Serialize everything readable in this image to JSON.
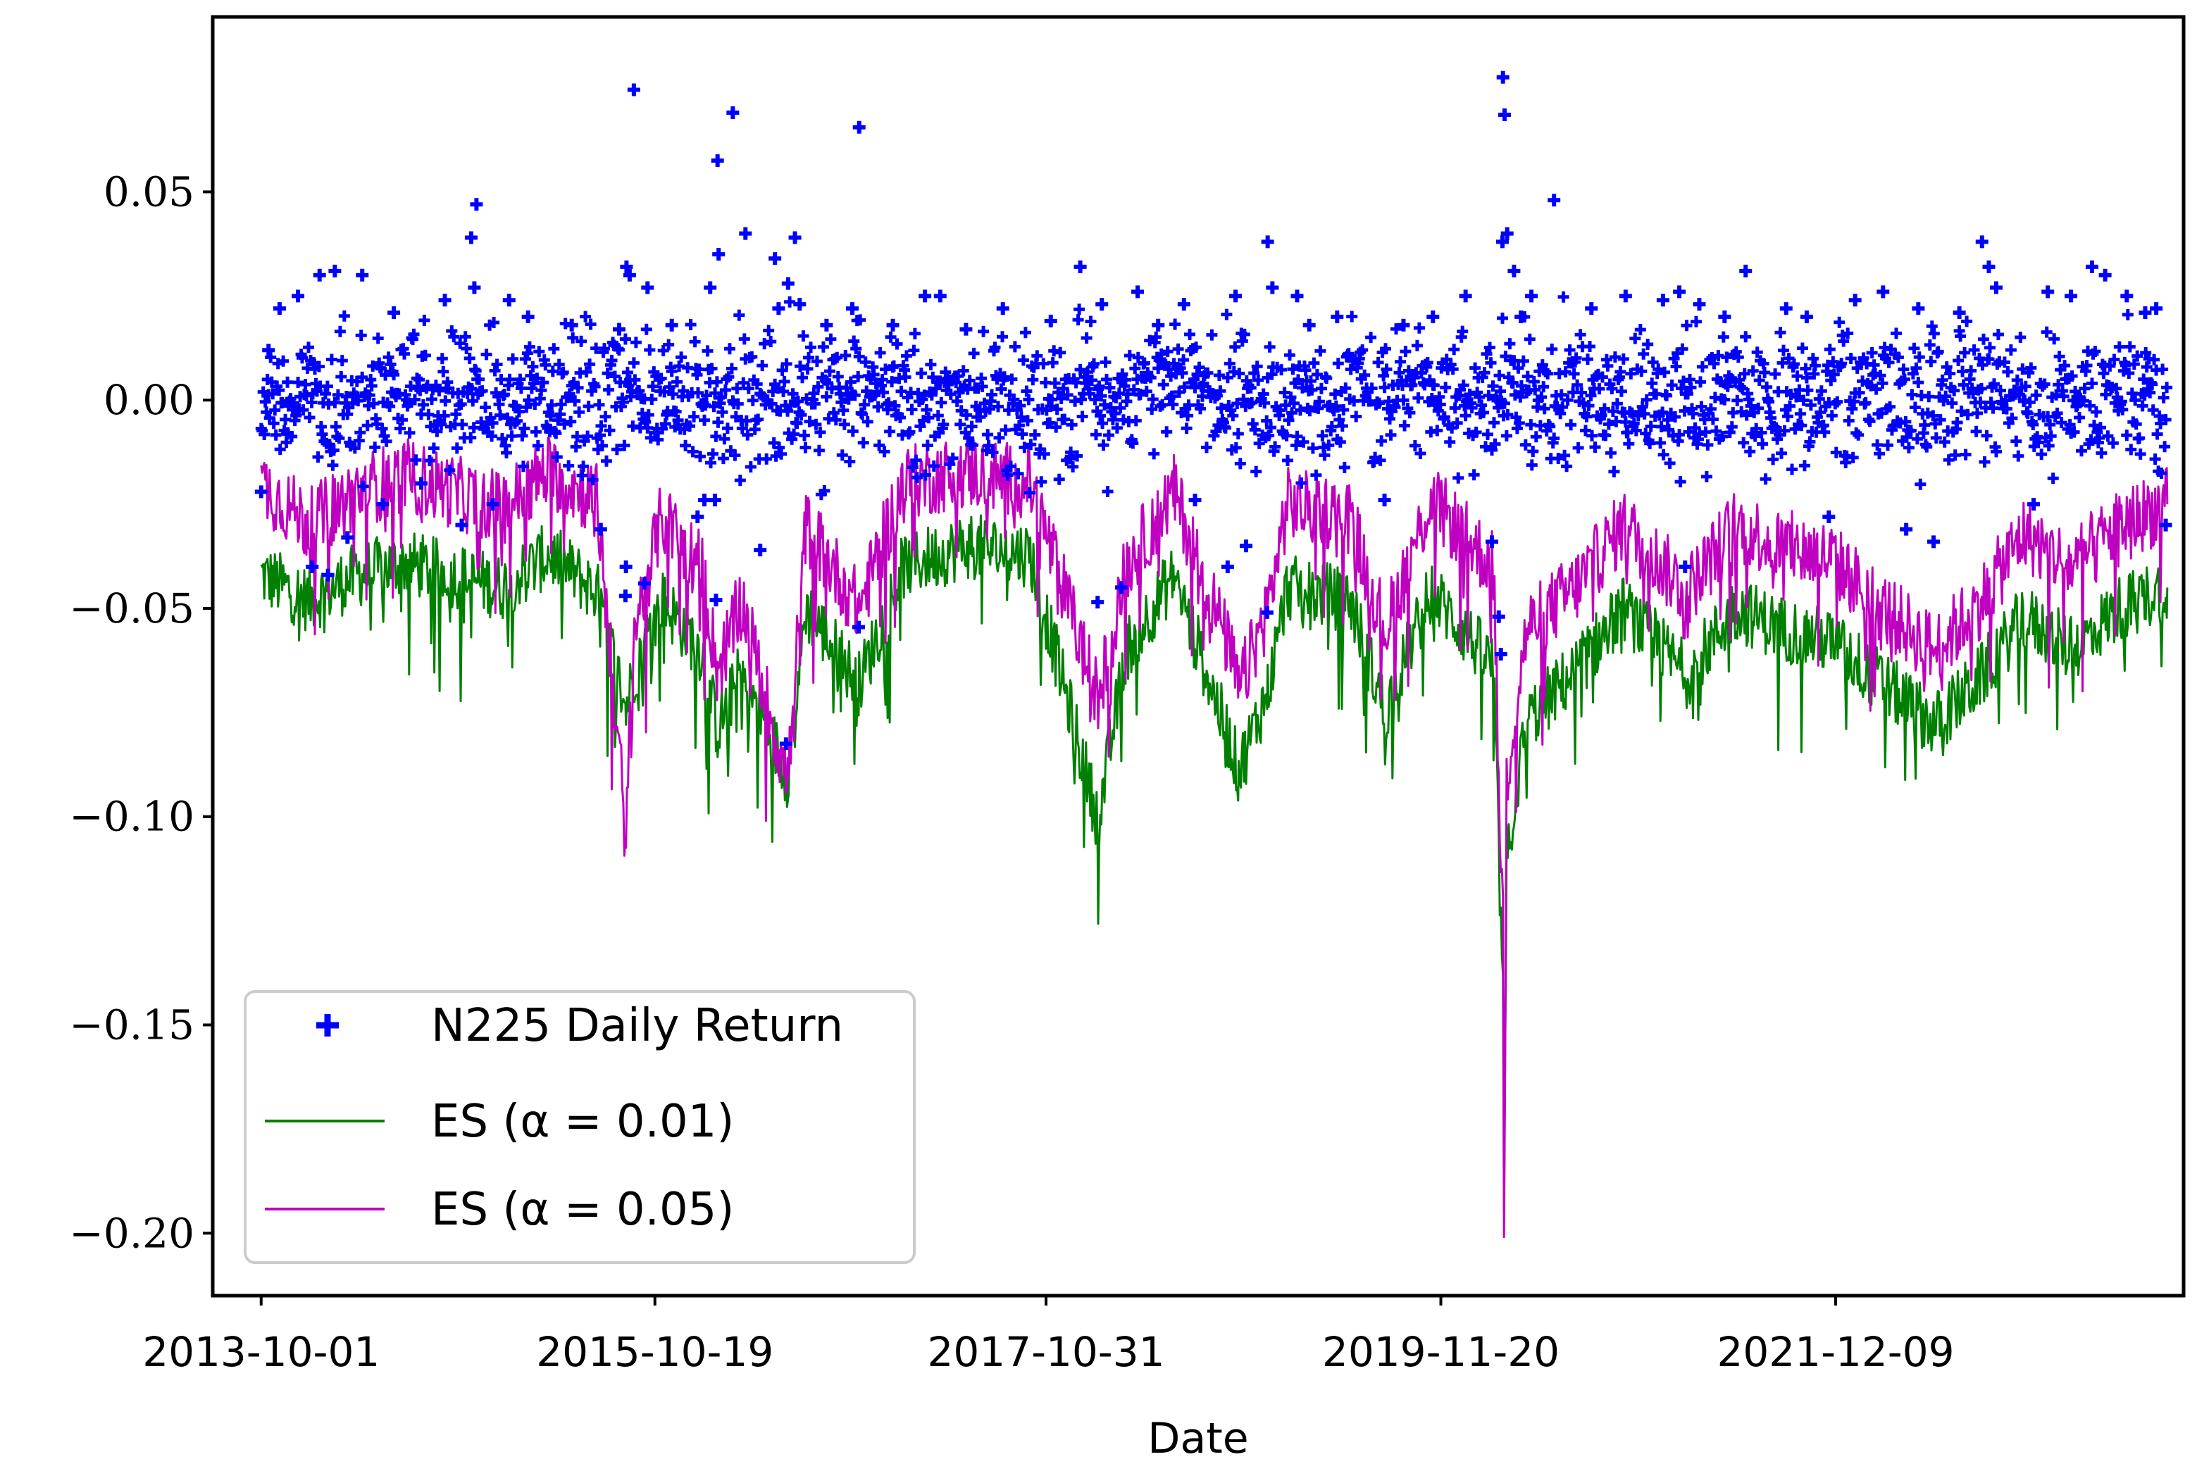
{
  "chart_data": {
    "type": "scatter",
    "title": "",
    "xlabel": "Date",
    "ylabel": "",
    "x_ticks": [
      "2013-10-01",
      "2015-10-19",
      "2017-10-31",
      "2019-11-20",
      "2021-12-09"
    ],
    "y_ticks": [
      "0.05",
      "0.00",
      "−0.05",
      "−0.10",
      "−0.15",
      "−0.20"
    ],
    "xlim": [
      "2013-07-01",
      "2023-10-01"
    ],
    "ylim": [
      -0.215,
      0.092
    ],
    "grid": false,
    "legend_position": "lower-left",
    "series": [
      {
        "name": "N225 Daily Return",
        "kind": "scatter",
        "marker": "+",
        "color": "#0000ff",
        "points": [
          [
            "2013-10-01",
            -0.022
          ],
          [
            "2013-10-15",
            0.012
          ],
          [
            "2013-11-05",
            0.022
          ],
          [
            "2013-11-20",
            -0.008
          ],
          [
            "2013-12-10",
            0.025
          ],
          [
            "2014-01-06",
            -0.04
          ],
          [
            "2014-01-20",
            0.03
          ],
          [
            "2014-02-05",
            -0.042
          ],
          [
            "2014-02-18",
            0.031
          ],
          [
            "2014-03-14",
            -0.033
          ],
          [
            "2014-04-11",
            0.03
          ],
          [
            "2014-05-20",
            -0.025
          ],
          [
            "2014-06-10",
            0.021
          ],
          [
            "2014-08-01",
            -0.02
          ],
          [
            "2014-09-15",
            0.024
          ],
          [
            "2014-10-17",
            -0.03
          ],
          [
            "2014-11-04",
            0.039
          ],
          [
            "2014-11-10",
            0.027
          ],
          [
            "2014-11-14",
            0.047
          ],
          [
            "2014-12-15",
            -0.025
          ],
          [
            "2015-01-15",
            0.024
          ],
          [
            "2015-02-20",
            0.02
          ],
          [
            "2015-05-14",
            0.018
          ],
          [
            "2015-07-08",
            -0.031
          ],
          [
            "2015-08-12",
            0.017
          ],
          [
            "2015-08-24",
            -0.047
          ],
          [
            "2015-08-25",
            -0.04
          ],
          [
            "2015-08-26",
            0.032
          ],
          [
            "2015-09-01",
            0.03
          ],
          [
            "2015-09-09",
            0.0745
          ],
          [
            "2015-09-29",
            -0.044
          ],
          [
            "2015-10-05",
            0.027
          ],
          [
            "2015-11-20",
            0.018
          ],
          [
            "2016-01-08",
            -0.028
          ],
          [
            "2016-01-21",
            -0.024
          ],
          [
            "2016-02-01",
            0.027
          ],
          [
            "2016-02-10",
            -0.024
          ],
          [
            "2016-02-12",
            -0.048
          ],
          [
            "2016-02-15",
            0.0575
          ],
          [
            "2016-02-17",
            0.035
          ],
          [
            "2016-03-15",
            0.069
          ],
          [
            "2016-04-08",
            0.04
          ],
          [
            "2016-05-06",
            -0.036
          ],
          [
            "2016-06-03",
            0.034
          ],
          [
            "2016-06-10",
            0.022
          ],
          [
            "2016-06-24",
            -0.0825
          ],
          [
            "2016-06-28",
            0.028
          ],
          [
            "2016-07-11",
            0.039
          ],
          [
            "2016-07-20",
            0.023
          ],
          [
            "2016-09-09",
            0.018
          ],
          [
            "2016-10-28",
            0.022
          ],
          [
            "2016-11-09",
            -0.0545
          ],
          [
            "2016-11-10",
            0.0655
          ],
          [
            "2017-01-13",
            0.018
          ],
          [
            "2017-03-15",
            0.025
          ],
          [
            "2017-04-13",
            0.025
          ],
          [
            "2017-06-01",
            0.017
          ],
          [
            "2017-08-10",
            0.022
          ],
          [
            "2017-11-09",
            0.019
          ],
          [
            "2018-01-04",
            0.032
          ],
          [
            "2018-02-06",
            -0.0485
          ],
          [
            "2018-02-14",
            0.023
          ],
          [
            "2018-03-23",
            -0.045
          ],
          [
            "2018-04-23",
            0.026
          ],
          [
            "2018-06-01",
            0.018
          ],
          [
            "2018-07-20",
            0.023
          ],
          [
            "2018-08-10",
            -0.024
          ],
          [
            "2018-10-11",
            -0.04
          ],
          [
            "2018-10-26",
            0.025
          ],
          [
            "2018-11-15",
            -0.035
          ],
          [
            "2018-12-25",
            -0.051
          ],
          [
            "2018-12-26",
            0.038
          ],
          [
            "2019-01-04",
            0.027
          ],
          [
            "2019-02-20",
            0.025
          ],
          [
            "2019-03-15",
            0.018
          ],
          [
            "2019-05-07",
            0.02
          ],
          [
            "2019-08-05",
            -0.024
          ],
          [
            "2019-09-10",
            0.018
          ],
          [
            "2019-11-05",
            0.02
          ],
          [
            "2020-01-06",
            0.025
          ],
          [
            "2020-02-25",
            -0.034
          ],
          [
            "2020-03-09",
            -0.052
          ],
          [
            "2020-03-13",
            -0.061
          ],
          [
            "2020-03-16",
            0.038
          ],
          [
            "2020-03-17",
            0.0775
          ],
          [
            "2020-03-20",
            0.0685
          ],
          [
            "2020-03-25",
            0.04
          ],
          [
            "2020-04-07",
            0.031
          ],
          [
            "2020-04-20",
            0.02
          ],
          [
            "2020-05-10",
            0.025
          ],
          [
            "2020-06-22",
            0.048
          ],
          [
            "2020-09-01",
            0.022
          ],
          [
            "2020-11-05",
            0.025
          ],
          [
            "2021-01-15",
            0.024
          ],
          [
            "2021-02-15",
            0.026
          ],
          [
            "2021-02-26",
            -0.04
          ],
          [
            "2021-03-25",
            0.023
          ],
          [
            "2021-05-12",
            0.02
          ],
          [
            "2021-06-21",
            0.031
          ],
          [
            "2021-09-06",
            0.022
          ],
          [
            "2021-10-15",
            0.02
          ],
          [
            "2021-11-26",
            -0.028
          ],
          [
            "2022-01-15",
            0.024
          ],
          [
            "2022-03-09",
            0.026
          ],
          [
            "2022-04-22",
            -0.031
          ],
          [
            "2022-05-15",
            0.022
          ],
          [
            "2022-06-13",
            -0.034
          ],
          [
            "2022-08-01",
            0.021
          ],
          [
            "2022-09-13",
            0.038
          ],
          [
            "2022-09-26",
            0.032
          ],
          [
            "2022-10-10",
            0.027
          ],
          [
            "2022-12-20",
            -0.025
          ],
          [
            "2023-01-16",
            0.026
          ],
          [
            "2023-03-01",
            0.025
          ],
          [
            "2023-04-10",
            0.032
          ],
          [
            "2023-05-05",
            0.03
          ],
          [
            "2023-06-15",
            0.025
          ],
          [
            "2023-07-20",
            0.021
          ],
          [
            "2023-08-10",
            0.022
          ],
          [
            "2023-08-28",
            -0.03
          ]
        ]
      },
      {
        "name": "ES (α = 0.01)",
        "kind": "line",
        "color": "#008000",
        "points": [
          [
            "2013-10-01",
            -0.042
          ],
          [
            "2014-01-01",
            -0.048
          ],
          [
            "2014-04-01",
            -0.042
          ],
          [
            "2014-07-01",
            -0.039
          ],
          [
            "2014-10-01",
            -0.042
          ],
          [
            "2015-01-01",
            -0.045
          ],
          [
            "2015-04-01",
            -0.037
          ],
          [
            "2015-07-01",
            -0.046
          ],
          [
            "2015-08-25",
            -0.074
          ],
          [
            "2015-09-10",
            -0.065
          ],
          [
            "2015-11-01",
            -0.048
          ],
          [
            "2016-01-15",
            -0.06
          ],
          [
            "2016-02-15",
            -0.079
          ],
          [
            "2016-04-01",
            -0.065
          ],
          [
            "2016-06-27",
            -0.09
          ],
          [
            "2016-08-01",
            -0.05
          ],
          [
            "2016-11-10",
            -0.068
          ],
          [
            "2017-02-01",
            -0.04
          ],
          [
            "2017-06-01",
            -0.035
          ],
          [
            "2017-10-01",
            -0.037
          ],
          [
            "2018-02-07",
            -0.101
          ],
          [
            "2018-04-01",
            -0.06
          ],
          [
            "2018-07-01",
            -0.042
          ],
          [
            "2018-10-15",
            -0.082
          ],
          [
            "2018-11-01",
            -0.089
          ],
          [
            "2018-12-26",
            -0.07
          ],
          [
            "2019-02-01",
            -0.045
          ],
          [
            "2019-06-01",
            -0.048
          ],
          [
            "2019-08-06",
            -0.075
          ],
          [
            "2019-11-01",
            -0.046
          ],
          [
            "2020-02-28",
            -0.064
          ],
          [
            "2020-03-13",
            -0.126
          ],
          [
            "2020-03-17",
            -0.137
          ],
          [
            "2020-03-19",
            -0.201
          ],
          [
            "2020-03-24",
            -0.11
          ],
          [
            "2020-05-01",
            -0.077
          ],
          [
            "2020-08-01",
            -0.065
          ],
          [
            "2020-11-01",
            -0.05
          ],
          [
            "2021-03-01",
            -0.066
          ],
          [
            "2021-06-01",
            -0.05
          ],
          [
            "2021-09-01",
            -0.055
          ],
          [
            "2021-12-01",
            -0.058
          ],
          [
            "2022-03-09",
            -0.068
          ],
          [
            "2022-06-15",
            -0.078
          ],
          [
            "2022-09-01",
            -0.068
          ],
          [
            "2022-12-01",
            -0.052
          ],
          [
            "2023-03-01",
            -0.06
          ],
          [
            "2023-06-01",
            -0.05
          ],
          [
            "2023-08-31",
            -0.045
          ]
        ]
      },
      {
        "name": "ES (α = 0.05)",
        "kind": "line",
        "color": "#c000c0",
        "points": [
          [
            "2013-10-01",
            -0.02
          ],
          [
            "2014-01-01",
            -0.03
          ],
          [
            "2014-04-01",
            -0.022
          ],
          [
            "2014-07-01",
            -0.018
          ],
          [
            "2014-10-01",
            -0.022
          ],
          [
            "2015-01-01",
            -0.026
          ],
          [
            "2015-04-01",
            -0.017
          ],
          [
            "2015-07-01",
            -0.024
          ],
          [
            "2015-08-25",
            -0.104
          ],
          [
            "2015-09-10",
            -0.055
          ],
          [
            "2015-11-01",
            -0.028
          ],
          [
            "2016-01-15",
            -0.04
          ],
          [
            "2016-02-15",
            -0.065
          ],
          [
            "2016-04-01",
            -0.048
          ],
          [
            "2016-06-27",
            -0.092
          ],
          [
            "2016-08-01",
            -0.03
          ],
          [
            "2016-11-10",
            -0.05
          ],
          [
            "2017-02-01",
            -0.02
          ],
          [
            "2017-06-01",
            -0.017
          ],
          [
            "2017-10-01",
            -0.02
          ],
          [
            "2018-02-07",
            -0.072
          ],
          [
            "2018-04-01",
            -0.04
          ],
          [
            "2018-07-01",
            -0.022
          ],
          [
            "2018-10-15",
            -0.06
          ],
          [
            "2018-11-01",
            -0.07
          ],
          [
            "2018-12-26",
            -0.05
          ],
          [
            "2019-02-01",
            -0.025
          ],
          [
            "2019-06-01",
            -0.028
          ],
          [
            "2019-08-06",
            -0.055
          ],
          [
            "2019-11-01",
            -0.024
          ],
          [
            "2020-02-28",
            -0.04
          ],
          [
            "2020-03-13",
            -0.11
          ],
          [
            "2020-03-17",
            -0.125
          ],
          [
            "2020-03-19",
            -0.198
          ],
          [
            "2020-03-24",
            -0.09
          ],
          [
            "2020-05-01",
            -0.055
          ],
          [
            "2020-08-01",
            -0.045
          ],
          [
            "2020-11-01",
            -0.03
          ],
          [
            "2021-03-01",
            -0.046
          ],
          [
            "2021-06-01",
            -0.03
          ],
          [
            "2021-09-01",
            -0.035
          ],
          [
            "2021-12-01",
            -0.038
          ],
          [
            "2022-03-09",
            -0.05
          ],
          [
            "2022-06-15",
            -0.06
          ],
          [
            "2022-09-01",
            -0.05
          ],
          [
            "2022-12-01",
            -0.032
          ],
          [
            "2023-03-01",
            -0.04
          ],
          [
            "2023-06-01",
            -0.03
          ],
          [
            "2023-08-31",
            -0.025
          ]
        ]
      }
    ]
  }
}
